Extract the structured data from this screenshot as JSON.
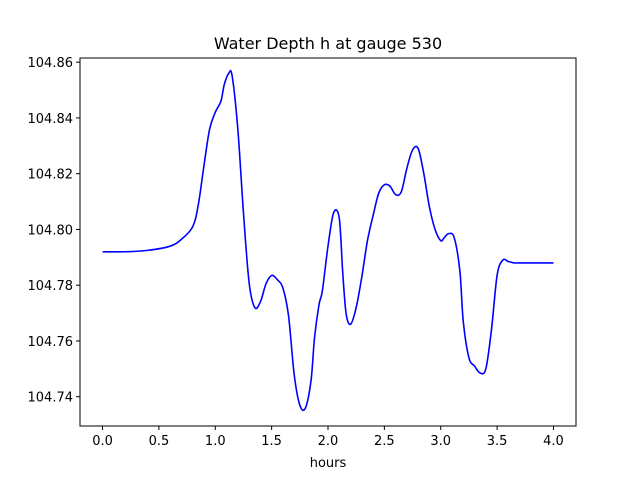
{
  "chart_data": {
    "type": "line",
    "title": "Water Depth h at gauge 530",
    "xlabel": "hours",
    "ylabel": "",
    "xlim": [
      -0.2,
      4.2
    ],
    "ylim": [
      104.7295,
      104.8615
    ],
    "grid": false,
    "xticks": [
      0.0,
      0.5,
      1.0,
      1.5,
      2.0,
      2.5,
      3.0,
      3.5,
      4.0
    ],
    "xtick_labels": [
      "0.0",
      "0.5",
      "1.0",
      "1.5",
      "2.0",
      "2.5",
      "3.0",
      "3.5",
      "4.0"
    ],
    "yticks": [
      104.74,
      104.76,
      104.78,
      104.8,
      104.82,
      104.84,
      104.86
    ],
    "ytick_labels": [
      "104.74",
      "104.76",
      "104.78",
      "104.80",
      "104.82",
      "104.84",
      "104.86"
    ],
    "series": [
      {
        "color": "#0000ff",
        "x": [
          0.0,
          0.2,
          0.4,
          0.6,
          0.7,
          0.8,
          0.85,
          0.9,
          0.95,
          1.0,
          1.05,
          1.08,
          1.12,
          1.15,
          1.2,
          1.25,
          1.3,
          1.35,
          1.4,
          1.45,
          1.5,
          1.55,
          1.6,
          1.65,
          1.7,
          1.75,
          1.8,
          1.85,
          1.88,
          1.92,
          1.95,
          2.0,
          2.05,
          2.1,
          2.13,
          2.16,
          2.2,
          2.25,
          2.3,
          2.35,
          2.4,
          2.45,
          2.5,
          2.55,
          2.6,
          2.65,
          2.7,
          2.75,
          2.8,
          2.85,
          2.9,
          2.95,
          3.0,
          3.03,
          3.07,
          3.12,
          3.17,
          3.2,
          3.25,
          3.3,
          3.35,
          3.4,
          3.45,
          3.5,
          3.55,
          3.6,
          3.65,
          3.7,
          3.75,
          3.8,
          3.85,
          3.88,
          3.92,
          3.95,
          4.0
        ],
        "y": [
          104.792,
          104.792,
          104.7925,
          104.794,
          104.7965,
          104.801,
          104.809,
          104.823,
          104.836,
          104.842,
          104.846,
          104.852,
          104.856,
          104.855,
          104.836,
          104.806,
          104.781,
          104.772,
          104.774,
          104.7805,
          104.7835,
          104.782,
          104.779,
          104.769,
          104.748,
          104.737,
          104.736,
          104.746,
          104.761,
          104.773,
          104.778,
          104.794,
          104.806,
          104.804,
          104.785,
          104.77,
          104.766,
          104.772,
          104.783,
          104.796,
          104.805,
          104.813,
          104.816,
          104.8155,
          104.8125,
          104.8135,
          104.822,
          104.8285,
          104.829,
          104.82,
          104.808,
          104.8,
          104.796,
          104.797,
          104.7985,
          104.797,
          104.785,
          104.767,
          104.754,
          104.751,
          104.7485,
          104.75,
          104.764,
          104.7835,
          104.789,
          104.7885,
          104.788,
          104.788,
          104.788,
          104.788,
          104.788,
          104.788,
          104.788,
          104.788,
          104.788
        ]
      }
    ]
  }
}
